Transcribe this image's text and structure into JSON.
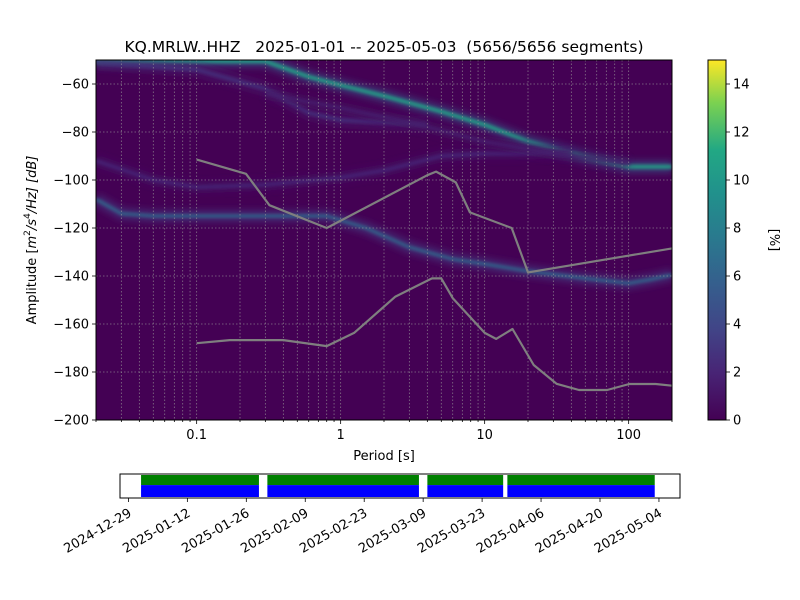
{
  "chart_data": [
    {
      "type": "heatmap",
      "title": "KQ.MRLW..HHZ   2025-01-01 -- 2025-05-03  (5656/5656 segments)",
      "xlabel": "Period [s]",
      "ylabel": "Amplitude [m²/s⁴/Hz] [dB]",
      "ylabel_parts": {
        "pre": "Amplitude [",
        "m": "m",
        "e2": "2",
        "s": "/s",
        "e4": "4",
        "hz": "/Hz] [dB]"
      },
      "x_scale": "log",
      "xlim": [
        0.02,
        200
      ],
      "ylim": [
        -200,
        -50
      ],
      "x_ticks": [
        {
          "value": 0.1,
          "label": "0.1"
        },
        {
          "value": 1,
          "label": "1"
        },
        {
          "value": 10,
          "label": "10"
        },
        {
          "value": 100,
          "label": "100"
        }
      ],
      "y_ticks": [
        -200,
        -180,
        -160,
        -140,
        -120,
        -100,
        -80,
        -60
      ],
      "grid": true,
      "colorbar": {
        "label": "[%]",
        "min": 0,
        "max": 15,
        "ticks": [
          0,
          2,
          4,
          6,
          8,
          10,
          12,
          14
        ],
        "colormap": "viridis"
      },
      "noise_models": [
        {
          "name": "high",
          "points": [
            [
              0.1,
              -91.5
            ],
            [
              0.22,
              -97.4
            ],
            [
              0.32,
              -110.5
            ],
            [
              0.8,
              -120
            ],
            [
              4.0,
              -98
            ],
            [
              4.6,
              -96.5
            ],
            [
              6.3,
              -101
            ],
            [
              7.9,
              -113.5
            ],
            [
              15.4,
              -120
            ],
            [
              20.0,
              -138.5
            ],
            [
              200,
              -128.5
            ]
          ]
        },
        {
          "name": "low",
          "points": [
            [
              0.1,
              -168
            ],
            [
              0.17,
              -166.7
            ],
            [
              0.4,
              -166.7
            ],
            [
              0.8,
              -169.2
            ],
            [
              1.24,
              -163.7
            ],
            [
              2.4,
              -148.6
            ],
            [
              4.3,
              -141
            ],
            [
              5.0,
              -141
            ],
            [
              6.0,
              -149.2
            ],
            [
              10.0,
              -163.7
            ],
            [
              12.0,
              -166.2
            ],
            [
              15.6,
              -162.1
            ],
            [
              21.9,
              -177.1
            ],
            [
              31.6,
              -184.9
            ],
            [
              45.2,
              -187.5
            ],
            [
              70.8,
              -187.5
            ],
            [
              101,
              -185
            ],
            [
              154,
              -185
            ],
            [
              200,
              -185.7
            ]
          ]
        }
      ],
      "psd_ridges": [
        {
          "name": "dominant",
          "points": [
            [
              0.02,
              -50.5
            ],
            [
              0.3,
              -50.5
            ],
            [
              0.6,
              -57
            ],
            [
              1.0,
              -60.5
            ],
            [
              2.0,
              -65
            ],
            [
              5.0,
              -71.5
            ],
            [
              10.0,
              -77
            ],
            [
              20.0,
              -84
            ],
            [
              50.0,
              -90.5
            ],
            [
              100,
              -94.5
            ],
            [
              200,
              -94.5
            ]
          ],
          "intensity": 10.5
        },
        {
          "name": "secondary",
          "points": [
            [
              0.02,
              -108
            ],
            [
              0.03,
              -114
            ],
            [
              0.05,
              -115
            ],
            [
              0.3,
              -115
            ],
            [
              0.8,
              -115
            ],
            [
              1.5,
              -120
            ],
            [
              3.0,
              -128
            ],
            [
              6.0,
              -133
            ],
            [
              10.0,
              -135
            ],
            [
              20.0,
              -138
            ],
            [
              50.0,
              -141
            ],
            [
              100,
              -143
            ],
            [
              140,
              -141.5
            ],
            [
              200,
              -139.5
            ]
          ],
          "intensity": 6.5
        },
        {
          "name": "microseism-band",
          "points": [
            [
              0.02,
              -92
            ],
            [
              0.05,
              -100
            ],
            [
              0.1,
              -103
            ],
            [
              0.3,
              -102
            ],
            [
              1.0,
              -99
            ],
            [
              2.0,
              -96
            ],
            [
              5.0,
              -90
            ],
            [
              10.0,
              -89
            ],
            [
              20.0,
              -89
            ],
            [
              40.0,
              -88
            ]
          ],
          "intensity": 2.2
        },
        {
          "name": "upper-band",
          "points": [
            [
              0.02,
              -51
            ],
            [
              0.1,
              -54
            ],
            [
              0.3,
              -62
            ],
            [
              0.6,
              -72
            ],
            [
              1.0,
              -75
            ],
            [
              2.0,
              -76
            ],
            [
              4.0,
              -77
            ]
          ],
          "intensity": 2.8
        },
        {
          "name": "mid-band",
          "points": [
            [
              0.3,
              -64
            ],
            [
              1.0,
              -70
            ],
            [
              3.0,
              -76
            ],
            [
              10.0,
              -84
            ],
            [
              30.0,
              -89
            ],
            [
              100,
              -93
            ]
          ],
          "intensity": 1.6
        }
      ]
    },
    {
      "type": "timeline",
      "date_ticks": [
        "2024-12-29",
        "2025-01-12",
        "2025-01-26",
        "2025-02-09",
        "2025-02-23",
        "2025-03-09",
        "2025-03-23",
        "2025-04-06",
        "2025-04-20",
        "2025-05-04"
      ],
      "range": [
        "2024-12-27",
        "2025-05-09"
      ],
      "coverage_color": "#0000ff",
      "data_color": "#008000",
      "segments": [
        [
          "2025-01-01",
          "2025-01-29"
        ],
        [
          "2025-01-31",
          "2025-03-08"
        ],
        [
          "2025-03-10",
          "2025-03-28"
        ],
        [
          "2025-03-29",
          "2025-05-03"
        ]
      ]
    }
  ]
}
